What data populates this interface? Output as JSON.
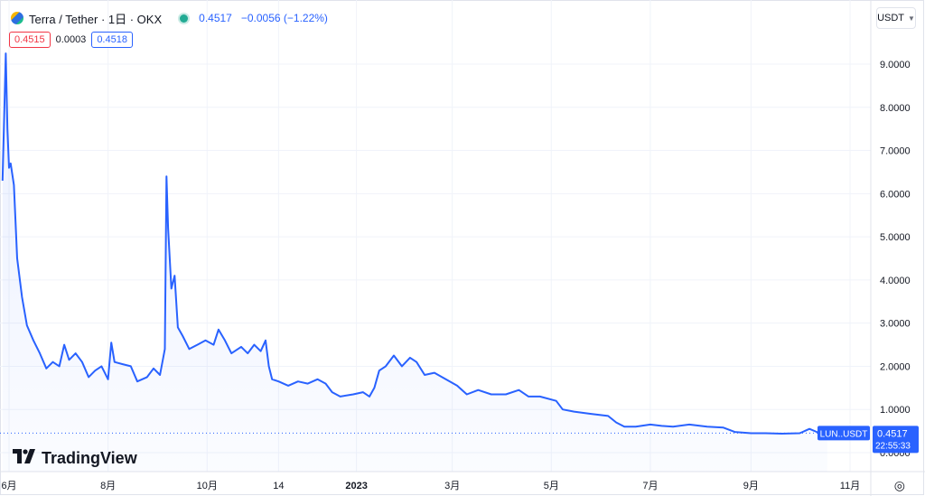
{
  "header": {
    "symbol_title": "Terra / Tether · 1日 · OKX",
    "last_price": "0.4517",
    "change": "−0.0056 (−1.22%)",
    "sell_price": "0.4515",
    "spread": "0.0003",
    "buy_price": "0.4518",
    "currency": "USDT",
    "icons": [
      "terra-coin-icon",
      "market-status-icon",
      "chevron-down-icon",
      "settings-icon",
      "tradingview-logo-icon"
    ]
  },
  "colors": {
    "line": "#2962ff",
    "fill": "#e9eefc",
    "sell": "#f23645",
    "buy": "#2962ff",
    "market_open": "#22ab94"
  },
  "price_label": {
    "ticker": "LUN..USDT",
    "value": "0.4517",
    "countdown": "22:55:33"
  },
  "branding": "TradingView",
  "chart_data": {
    "type": "area",
    "title": "",
    "xlabel": "",
    "ylabel": "",
    "ylim": [
      -0.6,
      9.9
    ],
    "grid": true,
    "y_ticks": [
      "9.0000",
      "8.0000",
      "7.0000",
      "6.0000",
      "5.0000",
      "4.0000",
      "3.0000",
      "2.0000",
      "1.0000",
      "0.0000"
    ],
    "y_tick_values": [
      9,
      8,
      7,
      6,
      5,
      4,
      3,
      2,
      1,
      0
    ],
    "x_ticks": [
      {
        "label": "6月",
        "x": "2022-06-01"
      },
      {
        "label": "8月",
        "x": "2022-08-01"
      },
      {
        "label": "10月",
        "x": "2022-10-01"
      },
      {
        "label": "14",
        "x": "2022-11-14"
      },
      {
        "label": "2023",
        "x": "2023-01-01"
      },
      {
        "label": "3月",
        "x": "2023-03-01"
      },
      {
        "label": "5月",
        "x": "2023-05-01"
      },
      {
        "label": "7月",
        "x": "2023-07-01"
      },
      {
        "label": "9月",
        "x": "2023-09-01"
      },
      {
        "label": "11月",
        "x": "2023-11-01"
      }
    ],
    "x_range": [
      "2022-06-01",
      "2023-11-01"
    ],
    "series": [
      {
        "points": [
          [
            "2022-05-28",
            6.3
          ],
          [
            "2022-05-30",
            9.25
          ],
          [
            "2022-05-31",
            7.5
          ],
          [
            "2022-06-01",
            6.6
          ],
          [
            "2022-06-02",
            6.7
          ],
          [
            "2022-06-04",
            6.2
          ],
          [
            "2022-06-06",
            4.5
          ],
          [
            "2022-06-09",
            3.6
          ],
          [
            "2022-06-12",
            2.95
          ],
          [
            "2022-06-16",
            2.6
          ],
          [
            "2022-06-20",
            2.3
          ],
          [
            "2022-06-24",
            1.95
          ],
          [
            "2022-06-28",
            2.1
          ],
          [
            "2022-07-02",
            2.0
          ],
          [
            "2022-07-05",
            2.5
          ],
          [
            "2022-07-08",
            2.15
          ],
          [
            "2022-07-12",
            2.3
          ],
          [
            "2022-07-16",
            2.1
          ],
          [
            "2022-07-20",
            1.75
          ],
          [
            "2022-07-24",
            1.9
          ],
          [
            "2022-07-28",
            2.0
          ],
          [
            "2022-08-01",
            1.7
          ],
          [
            "2022-08-03",
            2.55
          ],
          [
            "2022-08-05",
            2.1
          ],
          [
            "2022-08-10",
            2.05
          ],
          [
            "2022-08-15",
            2.0
          ],
          [
            "2022-08-19",
            1.65
          ],
          [
            "2022-08-25",
            1.75
          ],
          [
            "2022-08-29",
            1.95
          ],
          [
            "2022-09-02",
            1.8
          ],
          [
            "2022-09-05",
            2.4
          ],
          [
            "2022-09-06",
            6.4
          ],
          [
            "2022-09-07",
            5.2
          ],
          [
            "2022-09-09",
            3.8
          ],
          [
            "2022-09-11",
            4.1
          ],
          [
            "2022-09-13",
            2.9
          ],
          [
            "2022-09-16",
            2.7
          ],
          [
            "2022-09-20",
            2.4
          ],
          [
            "2022-09-25",
            2.5
          ],
          [
            "2022-09-30",
            2.6
          ],
          [
            "2022-10-05",
            2.5
          ],
          [
            "2022-10-08",
            2.85
          ],
          [
            "2022-10-12",
            2.6
          ],
          [
            "2022-10-16",
            2.3
          ],
          [
            "2022-10-22",
            2.45
          ],
          [
            "2022-10-26",
            2.3
          ],
          [
            "2022-10-30",
            2.5
          ],
          [
            "2022-11-03",
            2.35
          ],
          [
            "2022-11-06",
            2.6
          ],
          [
            "2022-11-08",
            2.0
          ],
          [
            "2022-11-10",
            1.7
          ],
          [
            "2022-11-14",
            1.65
          ],
          [
            "2022-11-20",
            1.55
          ],
          [
            "2022-11-26",
            1.65
          ],
          [
            "2022-12-02",
            1.6
          ],
          [
            "2022-12-08",
            1.7
          ],
          [
            "2022-12-13",
            1.6
          ],
          [
            "2022-12-17",
            1.4
          ],
          [
            "2022-12-22",
            1.3
          ],
          [
            "2022-12-30",
            1.35
          ],
          [
            "2023-01-05",
            1.4
          ],
          [
            "2023-01-09",
            1.3
          ],
          [
            "2023-01-12",
            1.5
          ],
          [
            "2023-01-15",
            1.9
          ],
          [
            "2023-01-19",
            2.0
          ],
          [
            "2023-01-24",
            2.25
          ],
          [
            "2023-01-29",
            2.0
          ],
          [
            "2023-02-03",
            2.2
          ],
          [
            "2023-02-07",
            2.1
          ],
          [
            "2023-02-12",
            1.8
          ],
          [
            "2023-02-18",
            1.85
          ],
          [
            "2023-02-25",
            1.7
          ],
          [
            "2023-03-04",
            1.55
          ],
          [
            "2023-03-10",
            1.35
          ],
          [
            "2023-03-17",
            1.45
          ],
          [
            "2023-03-25",
            1.35
          ],
          [
            "2023-04-03",
            1.35
          ],
          [
            "2023-04-11",
            1.45
          ],
          [
            "2023-04-17",
            1.3
          ],
          [
            "2023-04-24",
            1.3
          ],
          [
            "2023-05-04",
            1.2
          ],
          [
            "2023-05-08",
            1.0
          ],
          [
            "2023-05-15",
            0.95
          ],
          [
            "2023-05-25",
            0.9
          ],
          [
            "2023-06-05",
            0.85
          ],
          [
            "2023-06-10",
            0.7
          ],
          [
            "2023-06-15",
            0.6
          ],
          [
            "2023-06-22",
            0.6
          ],
          [
            "2023-07-01",
            0.65
          ],
          [
            "2023-07-08",
            0.62
          ],
          [
            "2023-07-15",
            0.6
          ],
          [
            "2023-07-25",
            0.65
          ],
          [
            "2023-08-05",
            0.6
          ],
          [
            "2023-08-15",
            0.58
          ],
          [
            "2023-08-22",
            0.48
          ],
          [
            "2023-09-01",
            0.45
          ],
          [
            "2023-09-10",
            0.45
          ],
          [
            "2023-09-20",
            0.44
          ],
          [
            "2023-10-01",
            0.45
          ],
          [
            "2023-10-07",
            0.55
          ],
          [
            "2023-10-12",
            0.47
          ],
          [
            "2023-10-18",
            0.4517
          ]
        ]
      }
    ],
    "last_value": 0.4517
  }
}
